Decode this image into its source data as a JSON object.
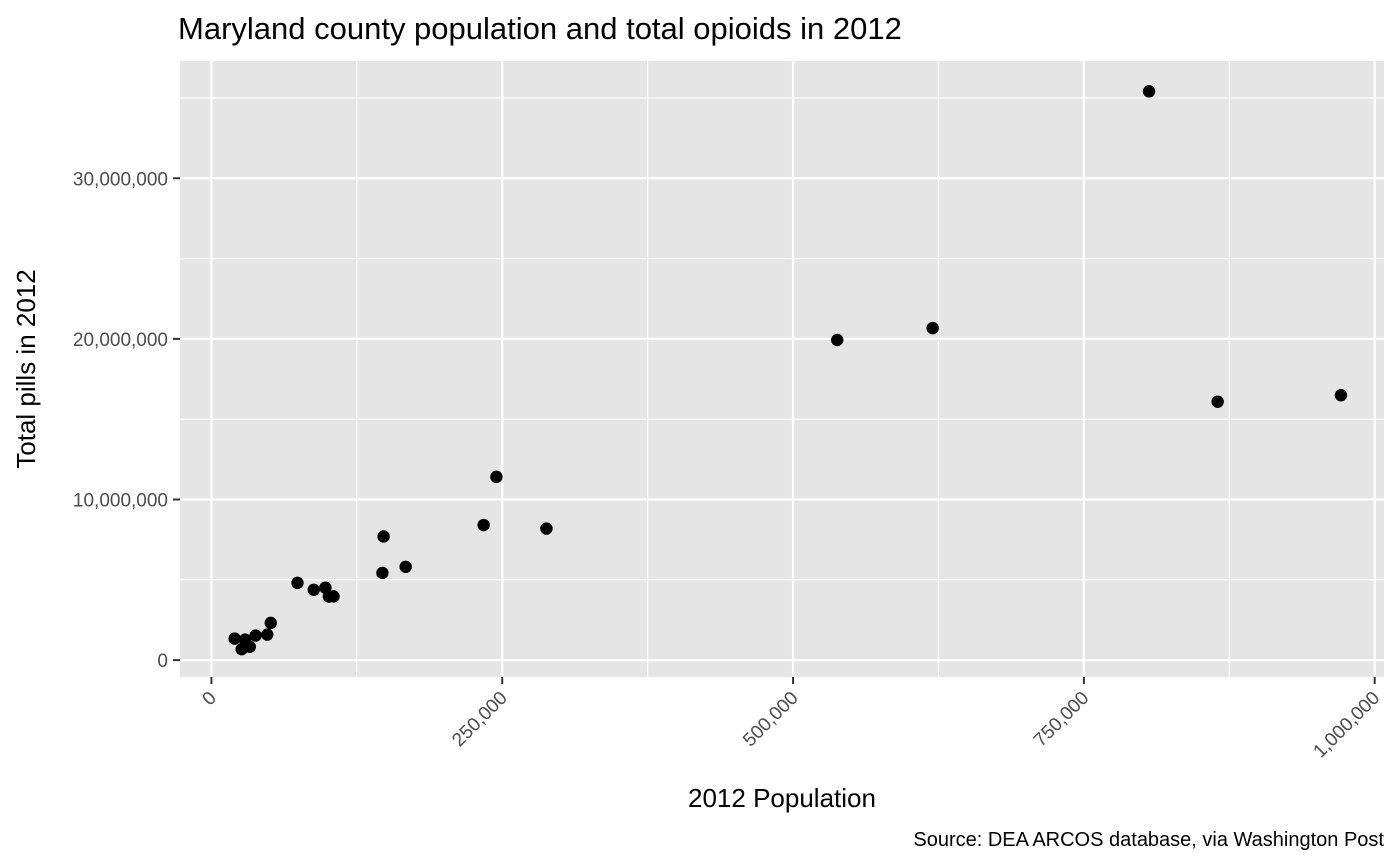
{
  "chart_data": {
    "type": "scatter",
    "title": "Maryland county population and total opioids in 2012",
    "xlabel": "2012 Population",
    "ylabel": "Total pills in 2012",
    "caption": "Source: DEA ARCOS database, via Washington Post",
    "xlim": [
      -27000,
      1008000
    ],
    "ylim": [
      -1050000,
      37300000
    ],
    "x_ticks": [
      0,
      250000,
      500000,
      750000,
      1000000
    ],
    "x_tick_labels": [
      "0",
      "250,000",
      "500,000",
      "750,000",
      "1,000,000"
    ],
    "y_ticks": [
      0,
      10000000,
      20000000,
      30000000
    ],
    "y_tick_labels": [
      "0",
      "10,000,000",
      "20,000,000",
      "30,000,000"
    ],
    "grid": true,
    "legend": "none",
    "colors": {
      "panel_background": "#e5e5e5",
      "grid_line": "#ffffff",
      "point": "#000000",
      "tick_label": "#4d4d4d"
    },
    "points": [
      {
        "x": 20000,
        "y": 1340000
      },
      {
        "x": 26000,
        "y": 680000
      },
      {
        "x": 29000,
        "y": 1280000
      },
      {
        "x": 33000,
        "y": 830000
      },
      {
        "x": 38000,
        "y": 1530000
      },
      {
        "x": 48000,
        "y": 1590000
      },
      {
        "x": 51000,
        "y": 2320000
      },
      {
        "x": 74000,
        "y": 4810000
      },
      {
        "x": 88000,
        "y": 4380000
      },
      {
        "x": 98000,
        "y": 4510000
      },
      {
        "x": 101000,
        "y": 3960000
      },
      {
        "x": 105000,
        "y": 3970000
      },
      {
        "x": 147000,
        "y": 5430000
      },
      {
        "x": 148000,
        "y": 7700000
      },
      {
        "x": 167000,
        "y": 5810000
      },
      {
        "x": 234000,
        "y": 8410000
      },
      {
        "x": 245000,
        "y": 11410000
      },
      {
        "x": 288000,
        "y": 8190000
      },
      {
        "x": 538000,
        "y": 19930000
      },
      {
        "x": 620000,
        "y": 20670000
      },
      {
        "x": 806000,
        "y": 35410000
      },
      {
        "x": 865000,
        "y": 16090000
      },
      {
        "x": 971000,
        "y": 16490000
      }
    ]
  }
}
